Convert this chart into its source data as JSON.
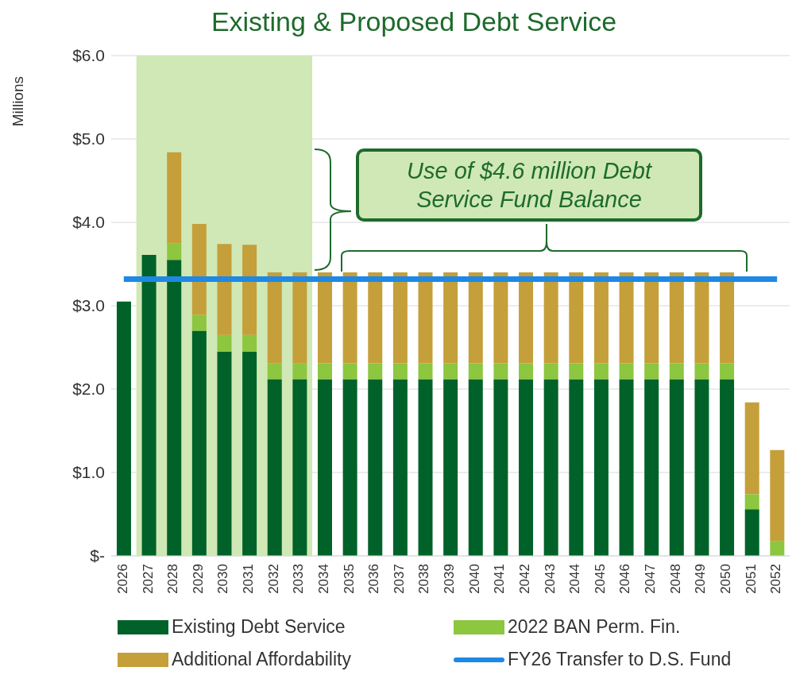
{
  "chart_data": {
    "type": "bar",
    "title": "Existing & Proposed Debt Service",
    "ylabel": "Millions",
    "stacked": true,
    "categories": [
      "2026",
      "2027",
      "2028",
      "2029",
      "2030",
      "2031",
      "2032",
      "2033",
      "2034",
      "2035",
      "2036",
      "2037",
      "2038",
      "2039",
      "2040",
      "2041",
      "2042",
      "2043",
      "2044",
      "2045",
      "2046",
      "2047",
      "2048",
      "2049",
      "2050",
      "2051",
      "2052"
    ],
    "series": [
      {
        "name": "Existing Debt Service",
        "color": "#006228",
        "values": [
          3.05,
          3.61,
          3.55,
          2.7,
          2.45,
          2.45,
          2.12,
          2.12,
          2.12,
          2.12,
          2.12,
          2.12,
          2.12,
          2.12,
          2.12,
          2.12,
          2.12,
          2.12,
          2.12,
          2.12,
          2.12,
          2.12,
          2.12,
          2.12,
          2.12,
          0.56,
          0
        ]
      },
      {
        "name": "2022 BAN Perm. Fin.",
        "color": "#8dc63f",
        "values": [
          0,
          0,
          0.2,
          0.19,
          0.2,
          0.2,
          0.19,
          0.19,
          0.19,
          0.19,
          0.19,
          0.19,
          0.19,
          0.19,
          0.19,
          0.19,
          0.19,
          0.19,
          0.19,
          0.19,
          0.19,
          0.19,
          0.19,
          0.19,
          0.19,
          0.18,
          0.18
        ]
      },
      {
        "name": "Additional Affordability",
        "color": "#c59f3a",
        "values": [
          0,
          0,
          1.09,
          1.09,
          1.09,
          1.08,
          1.09,
          1.09,
          1.09,
          1.09,
          1.09,
          1.09,
          1.09,
          1.09,
          1.09,
          1.09,
          1.09,
          1.09,
          1.09,
          1.09,
          1.09,
          1.09,
          1.09,
          1.09,
          1.09,
          1.1,
          1.09
        ]
      },
      {
        "name": "FY26 Transfer to D.S. Fund",
        "type": "line",
        "color": "#1e88e5",
        "values": [
          3.32,
          3.32,
          3.32,
          3.32,
          3.32,
          3.32,
          3.32,
          3.32,
          3.32,
          3.32,
          3.32,
          3.32,
          3.32,
          3.32,
          3.32,
          3.32,
          3.32,
          3.32,
          3.32,
          3.32,
          3.32,
          3.32,
          3.32,
          3.32,
          3.32,
          3.32,
          3.32
        ]
      }
    ],
    "ylim": [
      0,
      6
    ],
    "yticks": [
      {
        "value": 0,
        "label": "$-"
      },
      {
        "value": 1,
        "label": "$1.0"
      },
      {
        "value": 2,
        "label": "$2.0"
      },
      {
        "value": 3,
        "label": "$3.0"
      },
      {
        "value": 4,
        "label": "$4.0"
      },
      {
        "value": 5,
        "label": "$5.0"
      },
      {
        "value": 6,
        "label": "$6.0"
      }
    ],
    "grid": "y",
    "legend": "bottom",
    "marker": "none",
    "bands": [
      {
        "axis": "x",
        "from": "2027",
        "to": "2033",
        "color": "#d0e8b5"
      }
    ],
    "annotations": [
      {
        "text": "Use of $4.6 million Debt Service Fund Balance",
        "y": 3.4
      }
    ]
  }
}
